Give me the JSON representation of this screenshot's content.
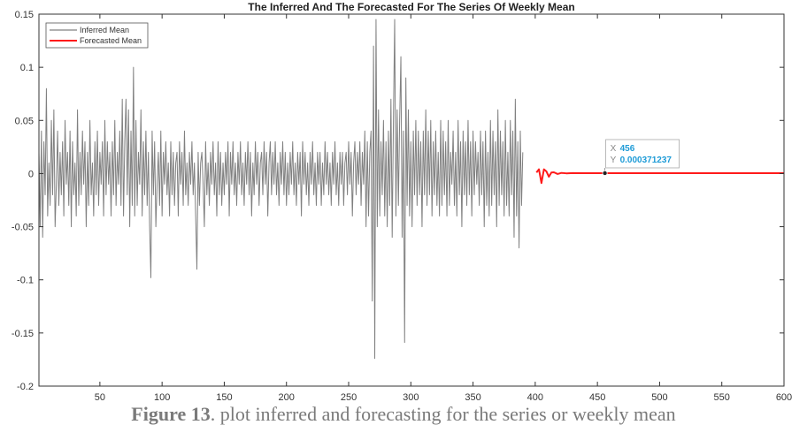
{
  "chart_data": {
    "type": "line",
    "title": "The Inferred And The Forecasted For The Series Of Weekly Mean",
    "xlabel": "",
    "ylabel": "",
    "xlim": [
      1,
      600
    ],
    "ylim": [
      -0.2,
      0.15
    ],
    "x_ticks": [
      50,
      100,
      150,
      200,
      250,
      300,
      350,
      400,
      450,
      500,
      550,
      600
    ],
    "y_ticks": [
      -0.2,
      -0.15,
      -0.1,
      -0.05,
      0,
      0.05,
      0.1,
      0.15
    ],
    "y_tick_labels": [
      "-0.2",
      "-0.15",
      "-0.1",
      "-0.05",
      "0",
      "0.05",
      "0.1",
      "0.15"
    ],
    "grid": false,
    "legend": {
      "placement": "top-left",
      "entries": [
        "Inferred Mean",
        "Forecasted Mean"
      ]
    },
    "series": [
      {
        "name": "Inferred Mean",
        "color": "#808080",
        "x_start": 1,
        "x_step": 1,
        "values": [
          0.02,
          -0.05,
          0.04,
          -0.06,
          0.03,
          -0.02,
          0.08,
          -0.04,
          0.01,
          -0.03,
          0.05,
          -0.02,
          0.06,
          -0.05,
          -0.01,
          0.04,
          -0.03,
          0.02,
          -0.02,
          0.03,
          -0.04,
          0.05,
          -0.01,
          0.02,
          -0.03,
          0.04,
          -0.05,
          0.03,
          -0.02,
          0.01,
          -0.04,
          0.06,
          -0.03,
          0.02,
          -0.02,
          0.04,
          -0.01,
          0.03,
          -0.05,
          0.02,
          -0.03,
          0.05,
          -0.02,
          0.01,
          -0.04,
          0.03,
          -0.02,
          0.04,
          -0.03,
          0.02,
          -0.01,
          0.03,
          -0.04,
          0.05,
          -0.02,
          0.03,
          -0.01,
          0.02,
          -0.04,
          0.03,
          -0.02,
          0.05,
          -0.03,
          0.02,
          -0.01,
          0.04,
          -0.03,
          0.07,
          -0.04,
          0.03,
          0.07,
          -0.02,
          0.06,
          -0.05,
          0.04,
          -0.03,
          0.1,
          -0.04,
          0.05,
          -0.03,
          0.02,
          -0.01,
          0.06,
          -0.04,
          0.03,
          -0.02,
          0.04,
          -0.03,
          0.02,
          -0.05,
          -0.098,
          0.04,
          -0.02,
          0.03,
          -0.05,
          -0.01,
          0.02,
          -0.03,
          0.04,
          -0.04,
          0.02,
          -0.01,
          0.03,
          -0.02,
          0.01,
          -0.04,
          0.03,
          -0.02,
          0.02,
          -0.03,
          0.01,
          0.02,
          -0.04,
          0.03,
          -0.01,
          0.02,
          -0.03,
          0.04,
          -0.02,
          0.01,
          -0.03,
          0.02,
          -0.01,
          0.03,
          -0.02,
          0.01,
          -0.04,
          -0.09,
          0.02,
          -0.03,
          0.01,
          0.02,
          -0.01,
          -0.05,
          0.03,
          -0.02,
          0.01,
          -0.03,
          0.02,
          -0.01,
          0.03,
          -0.02,
          0.01,
          -0.04,
          0.03,
          -0.02,
          0.02,
          -0.03,
          0.01,
          -0.02,
          0.02,
          -0.01,
          0.03,
          -0.04,
          0.02,
          -0.01,
          0.03,
          -0.02,
          0.01,
          -0.03,
          0.02,
          -0.01,
          0.03,
          -0.02,
          0.01,
          -0.03,
          0.02,
          -0.01,
          0.03,
          -0.02,
          0.02,
          -0.04,
          0.01,
          -0.02,
          0.03,
          -0.01,
          0.02,
          -0.03,
          0.01,
          0.02,
          -0.02,
          0.03,
          -0.01,
          0.02,
          -0.04,
          0.01,
          0.03,
          -0.02,
          0.02,
          -0.01,
          0.03,
          -0.02,
          0.01,
          -0.03,
          0.02,
          -0.01,
          0.03,
          -0.02,
          0.02,
          -0.03,
          0.01,
          -0.02,
          0.02,
          -0.01,
          0.03,
          -0.02,
          0.01,
          -0.03,
          0.02,
          -0.01,
          0.02,
          -0.04,
          0.03,
          -0.01,
          0.02,
          -0.02,
          0.01,
          -0.03,
          0.02,
          -0.01,
          0.03,
          -0.02,
          0.01,
          -0.03,
          0.02,
          -0.01,
          0.02,
          -0.03,
          0.01,
          -0.02,
          0.03,
          -0.01,
          0.02,
          -0.02,
          0.01,
          -0.03,
          0.02,
          -0.01,
          0.03,
          -0.02,
          0.01,
          -0.03,
          0.02,
          -0.01,
          0.02,
          -0.03,
          0.01,
          0.02,
          -0.02,
          0.03,
          -0.01,
          0.02,
          -0.04,
          0.01,
          0.03,
          -0.02,
          0.02,
          -0.01,
          0.03,
          -0.03,
          0.02,
          -0.01,
          0.04,
          -0.05,
          0.03,
          -0.04,
          0.02,
          0.04,
          -0.12,
          0.12,
          -0.174,
          0.145,
          -0.05,
          0.06,
          -0.04,
          0.03,
          -0.02,
          0.05,
          -0.04,
          0.03,
          -0.05,
          0.04,
          -0.03,
          0.07,
          -0.06,
          0.05,
          0.145,
          -0.04,
          0.06,
          -0.03,
          0.05,
          0.11,
          -0.06,
          0.04,
          -0.159,
          0.09,
          -0.03,
          0.06,
          -0.04,
          0.03,
          -0.05,
          0.04,
          -0.02,
          0.05,
          -0.03,
          0.04,
          -0.02,
          0.03,
          -0.05,
          0.04,
          -0.02,
          0.06,
          -0.03,
          0.04,
          -0.02,
          0.05,
          -0.04,
          0.03,
          -0.02,
          0.04,
          -0.03,
          0.02,
          -0.04,
          0.05,
          -0.03,
          0.04,
          -0.02,
          0.03,
          -0.04,
          0.05,
          -0.03,
          0.02,
          -0.01,
          0.04,
          -0.03,
          0.02,
          -0.04,
          0.05,
          -0.02,
          0.03,
          -0.05,
          0.04,
          -0.02,
          0.03,
          -0.03,
          0.05,
          -0.02,
          0.03,
          -0.04,
          0.04,
          -0.02,
          0.03,
          -0.01,
          0.02,
          -0.03,
          0.04,
          -0.02,
          0.03,
          -0.05,
          0.04,
          -0.03,
          0.02,
          -0.04,
          0.05,
          -0.03,
          0.04,
          -0.02,
          0.03,
          -0.05,
          0.06,
          -0.03,
          0.04,
          -0.02,
          0.03,
          -0.04,
          0.05,
          -0.03,
          0.02,
          -0.04,
          0.05,
          -0.02,
          0.04,
          -0.06,
          0.07,
          -0.04,
          0.03,
          -0.07,
          0.04,
          -0.03,
          0.02
        ]
      },
      {
        "name": "Forecasted Mean",
        "color": "#ff1a1a",
        "x": [
          401,
          403,
          405,
          407,
          409,
          411,
          413,
          415,
          418,
          421,
          425,
          430,
          440,
          456,
          500,
          550,
          600
        ],
        "values": [
          0.001,
          0.004,
          -0.009,
          0.004,
          0.002,
          -0.003,
          0.001,
          0.0012,
          -0.0004,
          0.0006,
          0.0002,
          0.0005,
          0.0004,
          0.000371237,
          0.00037,
          0.00037,
          0.00037
        ]
      }
    ],
    "datatip": {
      "x_label": "X",
      "x_value": "456",
      "y_label": "Y",
      "y_value": "0.000371237",
      "x": 456,
      "y": 0.000371237
    }
  },
  "caption": {
    "prefix": "Figure 13",
    "text": ". plot inferred and forecasting for the series or weekly mean"
  }
}
